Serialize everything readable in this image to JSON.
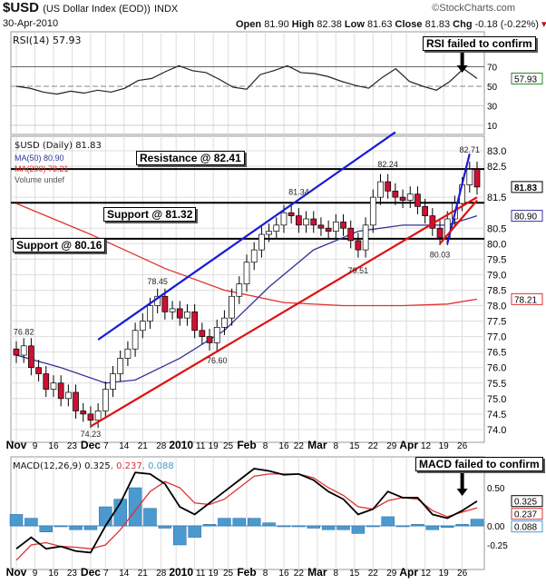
{
  "header": {
    "symbol": "$USD",
    "name": "(US Dollar Index (EOD))",
    "exchange": "INDX",
    "watermark": "©StockCharts.com",
    "date": "30-Apr-2010",
    "open_label": "Open",
    "open": "81.90",
    "high_label": "High",
    "high": "82.38",
    "low_label": "Low",
    "low": "81.63",
    "close_label": "Close",
    "close": "81.83",
    "chg_label": "Chg",
    "chg": "-0.18 (-0.22%)"
  },
  "annotations": {
    "rsi": "RSI failed to confirm",
    "macd": "MACD failed to confirm",
    "resistance": "Resistance @ 82.41",
    "support1": "Support @ 81.32",
    "support2": "Support @ 80.16",
    "points": [
      {
        "label": "76.82",
        "idx": 1,
        "v": 76.82,
        "pos": "above"
      },
      {
        "label": "74.23",
        "idx": 10,
        "v": 74.23,
        "pos": "below"
      },
      {
        "label": "78.45",
        "idx": 19,
        "v": 78.45,
        "pos": "above"
      },
      {
        "label": "76.60",
        "idx": 27,
        "v": 76.6,
        "pos": "below"
      },
      {
        "label": "81.34",
        "idx": 38,
        "v": 81.34,
        "pos": "above"
      },
      {
        "label": "79.51",
        "idx": 46,
        "v": 79.51,
        "pos": "below"
      },
      {
        "label": "82.24",
        "idx": 50,
        "v": 82.24,
        "pos": "above"
      },
      {
        "label": "80.03",
        "idx": 57,
        "v": 80.03,
        "pos": "below"
      },
      {
        "label": "82.71",
        "idx": 61,
        "v": 82.71,
        "pos": "above"
      }
    ]
  },
  "legend": {
    "rsi": "RSI(14) 57.93",
    "price": "$USD (Daily) 81.83",
    "ma50": "MA(50) 80.90",
    "ma200": "MA(200) 78.21",
    "volume": "Volume undef",
    "macd_a": "MACD(12,26,9) 0.325",
    "macd_b": ", 0.237",
    "macd_c": ", 0.088"
  },
  "colors": {
    "up": "#ffffff",
    "down": "#cc1133",
    "ma50": "#333399",
    "ma200": "#e03030",
    "trend_blue": "#1a1ad8",
    "trend_red": "#e01010",
    "hist": "#4a9ad0",
    "signal": "#e03030"
  },
  "chart_data": {
    "type": "candlestick",
    "title": "$USD (US Dollar Index (EOD)) INDX",
    "x_step_trading_days": 2,
    "close": [
      76.4,
      76.7,
      76.0,
      75.8,
      75.3,
      75.5,
      75.0,
      75.2,
      74.6,
      74.5,
      74.3,
      74.6,
      75.3,
      75.8,
      76.3,
      76.6,
      77.2,
      77.5,
      78.0,
      78.3,
      77.8,
      77.9,
      77.6,
      77.8,
      77.2,
      77.0,
      76.8,
      77.3,
      77.6,
      78.3,
      78.7,
      79.4,
      79.8,
      80.3,
      80.4,
      80.6,
      81.0,
      80.9,
      80.6,
      80.8,
      80.6,
      80.5,
      80.4,
      80.7,
      80.5,
      80.1,
      79.8,
      80.6,
      81.5,
      82.0,
      81.7,
      81.5,
      81.4,
      81.6,
      81.2,
      80.9,
      80.5,
      80.2,
      80.8,
      81.3,
      81.9,
      82.4,
      81.83
    ],
    "ma50": [
      [
        0,
        76.4
      ],
      [
        6,
        76.0
      ],
      [
        12,
        75.5
      ],
      [
        16,
        75.6
      ],
      [
        22,
        76.3
      ],
      [
        28,
        77.2
      ],
      [
        34,
        78.6
      ],
      [
        40,
        79.8
      ],
      [
        46,
        80.4
      ],
      [
        52,
        80.6
      ],
      [
        58,
        80.6
      ],
      [
        62,
        80.9
      ]
    ],
    "ma200": [
      [
        0,
        81.3
      ],
      [
        10,
        80.3
      ],
      [
        20,
        79.2
      ],
      [
        28,
        78.5
      ],
      [
        36,
        78.1
      ],
      [
        44,
        78.0
      ],
      [
        52,
        78.0
      ],
      [
        58,
        78.05
      ],
      [
        62,
        78.21
      ]
    ],
    "y_ticks": [
      83.0,
      82.5,
      81.5,
      80.5,
      80.0,
      79.5,
      79.0,
      78.5,
      78.0,
      77.5,
      77.0,
      76.5,
      76.0,
      75.5,
      75.0,
      74.5,
      74.0
    ],
    "ylim": [
      74.0,
      83.0
    ],
    "horizontal_lines": [
      82.41,
      81.32,
      80.16
    ],
    "trendlines": [
      {
        "color": "blue",
        "from": [
          11,
          76.9
        ],
        "to": [
          51,
          83.6
        ]
      },
      {
        "color": "red",
        "from": [
          10,
          74.1
        ],
        "to": [
          62,
          81.5
        ]
      },
      {
        "color": "blue",
        "from": [
          58,
          80.0
        ],
        "to": [
          61,
          82.9
        ]
      },
      {
        "color": "red",
        "from": [
          57,
          80.0
        ],
        "to": [
          62,
          81.4
        ]
      }
    ],
    "value_flags": [
      {
        "label": "81.83",
        "v": 81.83,
        "style": "close"
      },
      {
        "label": "80.90",
        "v": 80.9,
        "style": "ma50"
      },
      {
        "label": "78.21",
        "v": 78.21,
        "style": "ma200"
      }
    ],
    "x_labels": [
      {
        "label": "Nov",
        "idx": 0,
        "b": true
      },
      {
        "label": "9",
        "idx": 2.5
      },
      {
        "label": "16",
        "idx": 5
      },
      {
        "label": "23",
        "idx": 7.5
      },
      {
        "label": "Dec",
        "idx": 10,
        "b": true
      },
      {
        "label": "7",
        "idx": 12
      },
      {
        "label": "14",
        "idx": 14.5
      },
      {
        "label": "21",
        "idx": 17
      },
      {
        "label": "28",
        "idx": 19.5
      },
      {
        "label": "2010",
        "idx": 21.5,
        "b": true
      },
      {
        "label": "11",
        "idx": 24
      },
      {
        "label": "19",
        "idx": 26.5
      },
      {
        "label": "25",
        "idx": 28.5
      },
      {
        "label": "Feb",
        "idx": 31,
        "b": true
      },
      {
        "label": "8",
        "idx": 33.5
      },
      {
        "label": "16",
        "idx": 36
      },
      {
        "label": "22",
        "idx": 38
      },
      {
        "label": "Mar",
        "idx": 40.5,
        "b": true
      },
      {
        "label": "8",
        "idx": 43
      },
      {
        "label": "15",
        "idx": 45.5
      },
      {
        "label": "22",
        "idx": 48
      },
      {
        "label": "29",
        "idx": 50.5
      },
      {
        "label": "Apr",
        "idx": 52.5,
        "b": true
      },
      {
        "label": "12",
        "idx": 55
      },
      {
        "label": "19",
        "idx": 57.5
      },
      {
        "label": "26",
        "idx": 60
      }
    ],
    "rsi": {
      "values": [
        50,
        48,
        44,
        42,
        45,
        43,
        46,
        44,
        48,
        56,
        58,
        65,
        71,
        66,
        64,
        57,
        49,
        47,
        62,
        66,
        71,
        64,
        63,
        60,
        55,
        51,
        48,
        59,
        68,
        55,
        50,
        46,
        55,
        68,
        58
      ],
      "ticks": [
        70,
        50,
        30,
        10
      ],
      "ylim": [
        10,
        90
      ],
      "current": "57.93"
    },
    "macd": {
      "macd": [
        -0.3,
        -0.15,
        -0.3,
        -0.27,
        -0.33,
        -0.35,
        0.0,
        0.3,
        0.7,
        0.68,
        0.55,
        0.25,
        0.15,
        0.3,
        0.45,
        0.6,
        0.75,
        0.72,
        0.67,
        0.68,
        0.6,
        0.45,
        0.35,
        0.15,
        0.22,
        0.45,
        0.37,
        0.37,
        0.15,
        0.1,
        0.2,
        0.325
      ],
      "signal": [
        -0.45,
        -0.25,
        -0.22,
        -0.27,
        -0.28,
        -0.3,
        -0.25,
        -0.05,
        0.2,
        0.45,
        0.58,
        0.5,
        0.3,
        0.28,
        0.35,
        0.5,
        0.65,
        0.68,
        0.68,
        0.68,
        0.63,
        0.5,
        0.4,
        0.25,
        0.22,
        0.33,
        0.37,
        0.35,
        0.2,
        0.12,
        0.18,
        0.237
      ],
      "ticks": [
        "0.50",
        "0.00",
        "-0.25"
      ],
      "tick_values": [
        0.5,
        0,
        -0.25
      ],
      "flags": [
        {
          "label": "0.325",
          "v": 0.325,
          "c": "#000"
        },
        {
          "label": "0.237",
          "v": 0.237,
          "c": "#e03030"
        },
        {
          "label": "0.088",
          "v": 0.088,
          "c": "#4a9ad0"
        }
      ]
    }
  }
}
